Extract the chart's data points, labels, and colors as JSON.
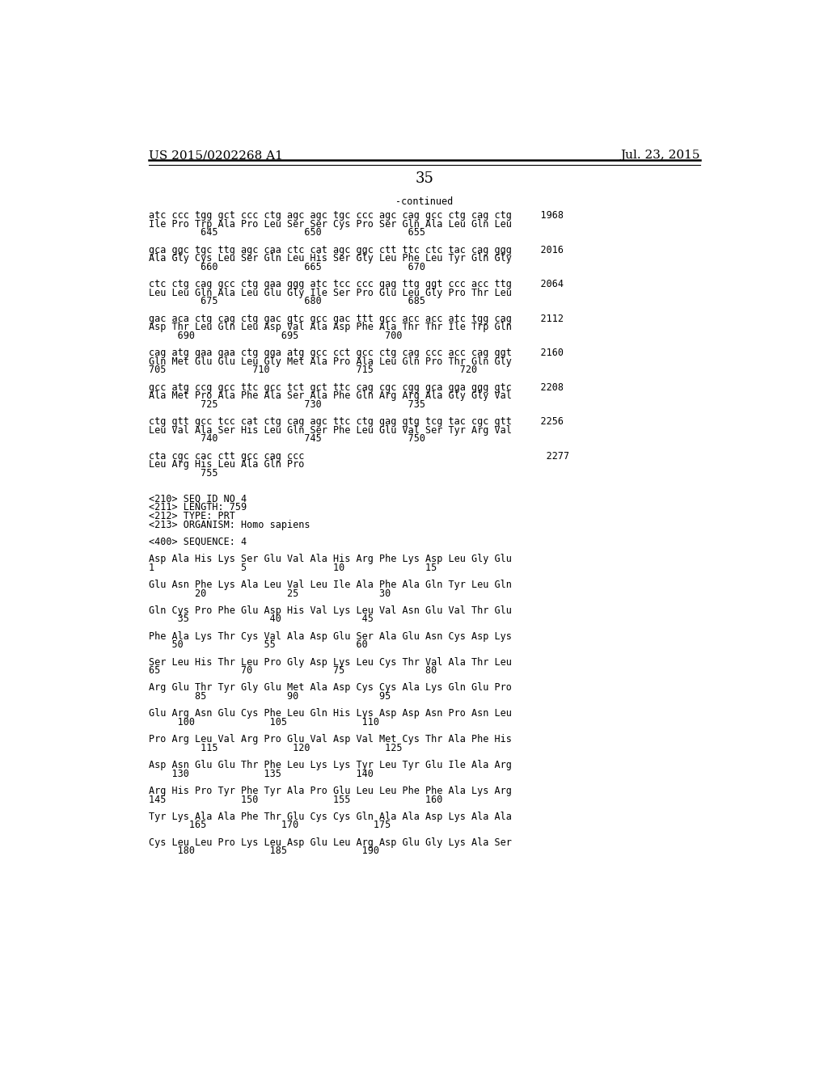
{
  "header_left": "US 2015/0202268 A1",
  "header_right": "Jul. 23, 2015",
  "page_number": "35",
  "continued_label": "-continued",
  "background_color": "#ffffff",
  "text_color": "#000000",
  "font_size": 8.5,
  "header_font_size": 11,
  "page_num_font_size": 13,
  "content_lines": [
    "atc ccc tgg gct ccc ctg agc agc tgc ccc agc cag gcc ctg cag ctg     1968",
    "Ile Pro Trp Ala Pro Leu Ser Ser Cys Pro Ser Gln Ala Leu Gln Leu",
    "         645               650               655",
    "",
    "gca ggc tgc ttg agc caa ctc cat agc ggc ctt ttc ctc tac cag ggg     2016",
    "Ala Gly Cys Leu Ser Gln Leu His Ser Gly Leu Phe Leu Tyr Gln Gly",
    "         660               665               670",
    "",
    "ctc ctg cag gcc ctg gaa ggg atc tcc ccc gag ttg ggt ccc acc ttg     2064",
    "Leu Leu Gln Ala Leu Glu Gly Ile Ser Pro Glu Leu Gly Pro Thr Leu",
    "         675               680               685",
    "",
    "gac aca ctg cag ctg gac gtc gcc gac ttt gcc acc acc atc tgg cag     2112",
    "Asp Thr Leu Gln Leu Asp Val Ala Asp Phe Ala Thr Thr Ile Trp Gln",
    "     690               695               700",
    "",
    "cag atg gaa gaa ctg gga atg gcc cct gcc ctg cag ccc acc cag ggt     2160",
    "Gln Met Glu Glu Leu Gly Met Ala Pro Ala Leu Gln Pro Thr Gln Gly",
    "705               710               715               720",
    "",
    "gcc atg ccg gcc ttc gcc tct gct ttc cag cgc cgg gca gga ggg gtc     2208",
    "Ala Met Pro Ala Phe Ala Ser Ala Phe Gln Arg Arg Ala Gly Gly Val",
    "         725               730               735",
    "",
    "ctg gtt gcc tcc cat ctg cag agc ttc ctg gag gtg tcg tac cgc gtt     2256",
    "Leu Val Ala Ser His Leu Gln Ser Phe Leu Glu Val Ser Tyr Arg Val",
    "         740               745               750",
    "",
    "cta cgc cac ctt gcc cag ccc                                          2277",
    "Leu Arg His Leu Ala Gln Pro",
    "         755",
    "",
    "",
    "<210> SEQ ID NO 4",
    "<211> LENGTH: 759",
    "<212> TYPE: PRT",
    "<213> ORGANISM: Homo sapiens",
    "",
    "<400> SEQUENCE: 4",
    "",
    "Asp Ala His Lys Ser Glu Val Ala His Arg Phe Lys Asp Leu Gly Glu",
    "1               5               10              15",
    "",
    "Glu Asn Phe Lys Ala Leu Val Leu Ile Ala Phe Ala Gln Tyr Leu Gln",
    "        20              25              30",
    "",
    "Gln Cys Pro Phe Glu Asp His Val Lys Leu Val Asn Glu Val Thr Glu",
    "     35              40              45",
    "",
    "Phe Ala Lys Thr Cys Val Ala Asp Glu Ser Ala Glu Asn Cys Asp Lys",
    "    50              55              60",
    "",
    "Ser Leu His Thr Leu Pro Gly Asp Lys Leu Cys Thr Val Ala Thr Leu",
    "65              70              75              80",
    "",
    "Arg Glu Thr Tyr Gly Glu Met Ala Asp Cys Cys Ala Lys Gln Glu Pro",
    "        85              90              95",
    "",
    "Glu Arg Asn Glu Cys Phe Leu Gln His Lys Asp Asp Asn Pro Asn Leu",
    "     100             105             110",
    "",
    "Pro Arg Leu Val Arg Pro Glu Val Asp Val Met Cys Thr Ala Phe His",
    "         115             120             125",
    "",
    "Asp Asn Glu Glu Thr Phe Leu Lys Lys Tyr Leu Tyr Glu Ile Ala Arg",
    "    130             135             140",
    "",
    "Arg His Pro Tyr Phe Tyr Ala Pro Glu Leu Leu Phe Phe Ala Lys Arg",
    "145             150             155             160",
    "",
    "Tyr Lys Ala Ala Phe Thr Glu Cys Cys Gln Ala Ala Asp Lys Ala Ala",
    "       165             170             175",
    "",
    "Cys Leu Leu Pro Lys Leu Asp Glu Leu Arg Asp Glu Gly Lys Ala Ser",
    "     180             185             190"
  ]
}
